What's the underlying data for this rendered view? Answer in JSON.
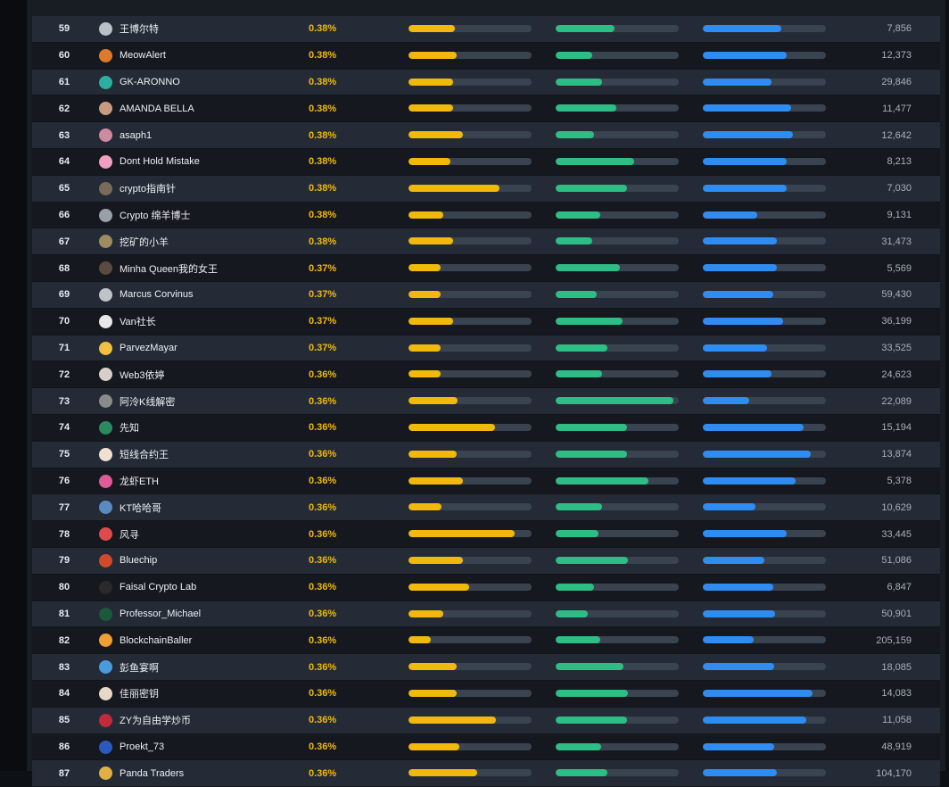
{
  "colors": {
    "yellow_bar": "#f0b90b",
    "green_bar": "#2ebd85",
    "blue_bar": "#2f8cf0",
    "percent_text": "#f0b90b"
  },
  "rows": [
    {
      "rank": "59",
      "name": "王博尔特",
      "pct": "0.38%",
      "y": 0.38,
      "g": 0.48,
      "b": 0.64,
      "count": "7,856",
      "avatar": "#b8c0c8"
    },
    {
      "rank": "60",
      "name": "MeowAlert",
      "pct": "0.38%",
      "y": 0.39,
      "g": 0.3,
      "b": 0.68,
      "count": "12,373",
      "avatar": "#e07a2a"
    },
    {
      "rank": "61",
      "name": "GK-ARONNO",
      "pct": "0.38%",
      "y": 0.36,
      "g": 0.38,
      "b": 0.56,
      "count": "29,846",
      "avatar": "#2ab0a0"
    },
    {
      "rank": "62",
      "name": "AMANDA BELLA",
      "pct": "0.38%",
      "y": 0.36,
      "g": 0.49,
      "b": 0.72,
      "count": "11,477",
      "avatar": "#c89a80"
    },
    {
      "rank": "63",
      "name": "asaph1",
      "pct": "0.38%",
      "y": 0.44,
      "g": 0.31,
      "b": 0.73,
      "count": "12,642",
      "avatar": "#d08aa0"
    },
    {
      "rank": "64",
      "name": "Dont Hold Mistake",
      "pct": "0.38%",
      "y": 0.34,
      "g": 0.64,
      "b": 0.68,
      "count": "8,213",
      "avatar": "#f2a0c0"
    },
    {
      "rank": "65",
      "name": "crypto指南针",
      "pct": "0.38%",
      "y": 0.74,
      "g": 0.58,
      "b": 0.68,
      "count": "7,030",
      "avatar": "#7a6a5a"
    },
    {
      "rank": "66",
      "name": "Crypto 绵羊博士",
      "pct": "0.38%",
      "y": 0.28,
      "g": 0.36,
      "b": 0.44,
      "count": "9,131",
      "avatar": "#9aa0a8"
    },
    {
      "rank": "67",
      "name": "挖矿的小羊",
      "pct": "0.38%",
      "y": 0.36,
      "g": 0.3,
      "b": 0.6,
      "count": "31,473",
      "avatar": "#a08a60"
    },
    {
      "rank": "68",
      "name": "Minha Queen我的女王",
      "pct": "0.37%",
      "y": 0.26,
      "g": 0.52,
      "b": 0.6,
      "count": "5,569",
      "avatar": "#5a4a40"
    },
    {
      "rank": "69",
      "name": "Marcus Corvinus",
      "pct": "0.37%",
      "y": 0.26,
      "g": 0.33,
      "b": 0.57,
      "count": "59,430",
      "avatar": "#c0c4c8"
    },
    {
      "rank": "70",
      "name": "Van社长",
      "pct": "0.37%",
      "y": 0.36,
      "g": 0.54,
      "b": 0.65,
      "count": "36,199",
      "avatar": "#e8e8e8"
    },
    {
      "rank": "71",
      "name": "ParvezMayar",
      "pct": "0.37%",
      "y": 0.26,
      "g": 0.42,
      "b": 0.52,
      "count": "33,525",
      "avatar": "#f0c040"
    },
    {
      "rank": "72",
      "name": "Web3依婷",
      "pct": "0.36%",
      "y": 0.26,
      "g": 0.38,
      "b": 0.56,
      "count": "24,623",
      "avatar": "#d8d0c8"
    },
    {
      "rank": "73",
      "name": "阿泠K线解密",
      "pct": "0.36%",
      "y": 0.4,
      "g": 0.96,
      "b": 0.38,
      "count": "22,089",
      "avatar": "#8a8a8a"
    },
    {
      "rank": "74",
      "name": "先知",
      "pct": "0.36%",
      "y": 0.7,
      "g": 0.58,
      "b": 0.82,
      "count": "15,194",
      "avatar": "#2a8a60"
    },
    {
      "rank": "75",
      "name": "短线合约王",
      "pct": "0.36%",
      "y": 0.39,
      "g": 0.58,
      "b": 0.88,
      "count": "13,874",
      "avatar": "#f0e0d0"
    },
    {
      "rank": "76",
      "name": "龙虾ETH",
      "pct": "0.36%",
      "y": 0.44,
      "g": 0.75,
      "b": 0.75,
      "count": "5,378",
      "avatar": "#e05a9a"
    },
    {
      "rank": "77",
      "name": "KT哈哈哥",
      "pct": "0.36%",
      "y": 0.27,
      "g": 0.38,
      "b": 0.43,
      "count": "10,629",
      "avatar": "#5a8ac0"
    },
    {
      "rank": "78",
      "name": "风寻",
      "pct": "0.36%",
      "y": 0.86,
      "g": 0.35,
      "b": 0.68,
      "count": "33,445",
      "avatar": "#e04a4a"
    },
    {
      "rank": "79",
      "name": "Bluechip",
      "pct": "0.36%",
      "y": 0.44,
      "g": 0.59,
      "b": 0.5,
      "count": "51,086",
      "avatar": "#d04a2a"
    },
    {
      "rank": "80",
      "name": "Faisal Crypto Lab",
      "pct": "0.36%",
      "y": 0.49,
      "g": 0.31,
      "b": 0.57,
      "count": "6,847",
      "avatar": "#2a2a2a"
    },
    {
      "rank": "81",
      "name": "Professor_Michael",
      "pct": "0.36%",
      "y": 0.28,
      "g": 0.26,
      "b": 0.59,
      "count": "50,901",
      "avatar": "#1a5a3a"
    },
    {
      "rank": "82",
      "name": "BlockchainBaller",
      "pct": "0.36%",
      "y": 0.18,
      "g": 0.36,
      "b": 0.41,
      "count": "205,159",
      "avatar": "#f0a030"
    },
    {
      "rank": "83",
      "name": "彭鱼宴啊",
      "pct": "0.36%",
      "y": 0.39,
      "g": 0.55,
      "b": 0.58,
      "count": "18,085",
      "avatar": "#4a9ae0"
    },
    {
      "rank": "84",
      "name": "佳丽密钥",
      "pct": "0.36%",
      "y": 0.39,
      "g": 0.59,
      "b": 0.89,
      "count": "14,083",
      "avatar": "#e8d8c8"
    },
    {
      "rank": "85",
      "name": "ZY为自由学炒币",
      "pct": "0.36%",
      "y": 0.71,
      "g": 0.58,
      "b": 0.84,
      "count": "11,058",
      "avatar": "#c02a3a"
    },
    {
      "rank": "86",
      "name": "Proekt_73",
      "pct": "0.36%",
      "y": 0.41,
      "g": 0.37,
      "b": 0.58,
      "count": "48,919",
      "avatar": "#2a5ac0"
    },
    {
      "rank": "87",
      "name": "Panda Traders",
      "pct": "0.36%",
      "y": 0.56,
      "g": 0.42,
      "b": 0.6,
      "count": "104,170",
      "avatar": "#e0b040"
    }
  ]
}
